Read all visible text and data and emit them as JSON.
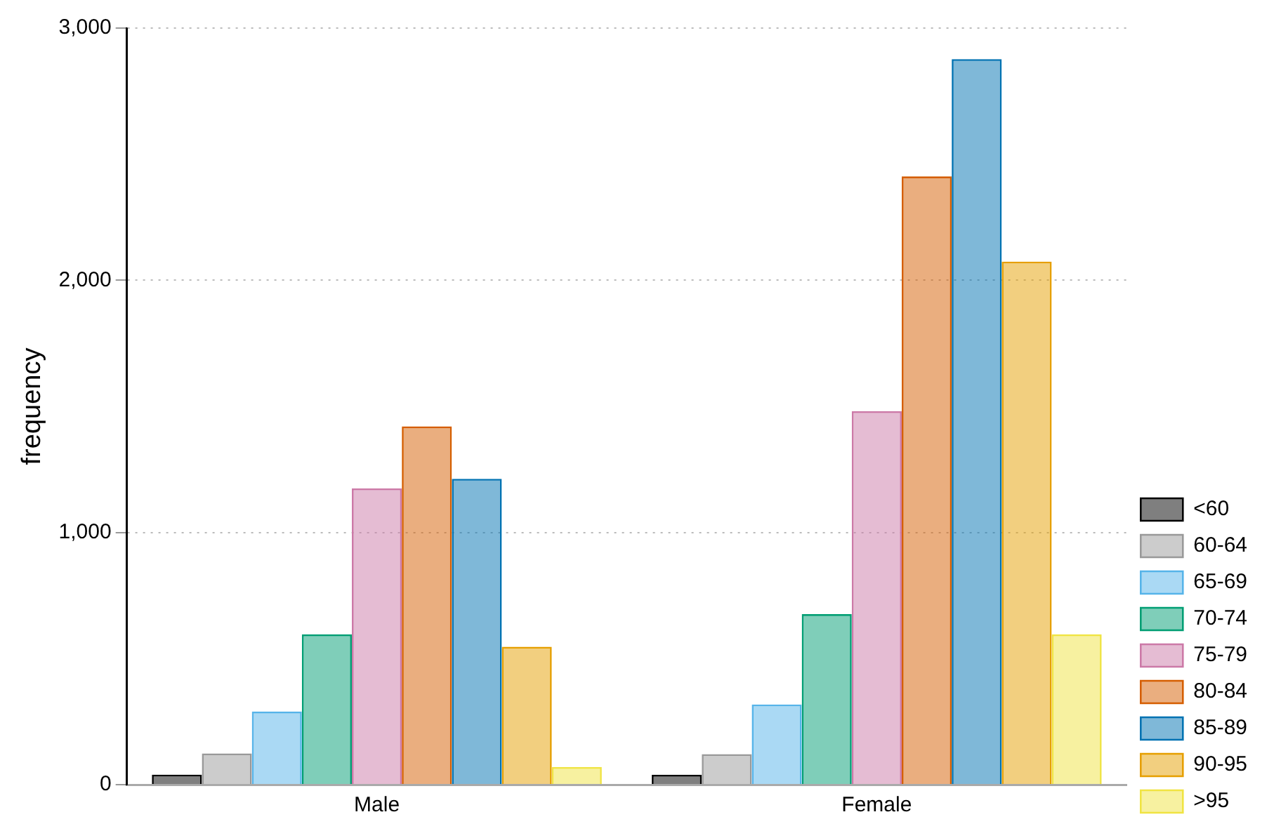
{
  "chart_data": {
    "type": "bar",
    "ylabel": "frequency",
    "categories": [
      "Male",
      "Female"
    ],
    "series": [
      {
        "name": "<60",
        "color": "#000000",
        "values": [
          40,
          39
        ]
      },
      {
        "name": "60-64",
        "color": "#999999",
        "values": [
          124,
          121
        ]
      },
      {
        "name": "65-69",
        "color": "#56b4e9",
        "values": [
          290,
          318
        ]
      },
      {
        "name": "70-74",
        "color": "#009e73",
        "values": [
          596,
          676
        ]
      },
      {
        "name": "75-79",
        "color": "#cc79a7",
        "values": [
          1175,
          1481
        ]
      },
      {
        "name": "80-84",
        "color": "#d55e00",
        "values": [
          1421,
          2412
        ]
      },
      {
        "name": "85-89",
        "color": "#0072b2",
        "values": [
          1213,
          2877
        ]
      },
      {
        "name": "90-95",
        "color": "#e69f00",
        "values": [
          547,
          2074
        ]
      },
      {
        "name": ">95",
        "color": "#f0e442",
        "values": [
          70,
          596
        ]
      }
    ],
    "ylim": [
      0,
      3000
    ],
    "yticks": [
      {
        "value": 0,
        "label": "0"
      },
      {
        "value": 1000,
        "label": "1,000"
      },
      {
        "value": 2000,
        "label": "2,000"
      },
      {
        "value": 3000,
        "label": "3,000"
      }
    ],
    "grid": "y",
    "legend": "right"
  }
}
